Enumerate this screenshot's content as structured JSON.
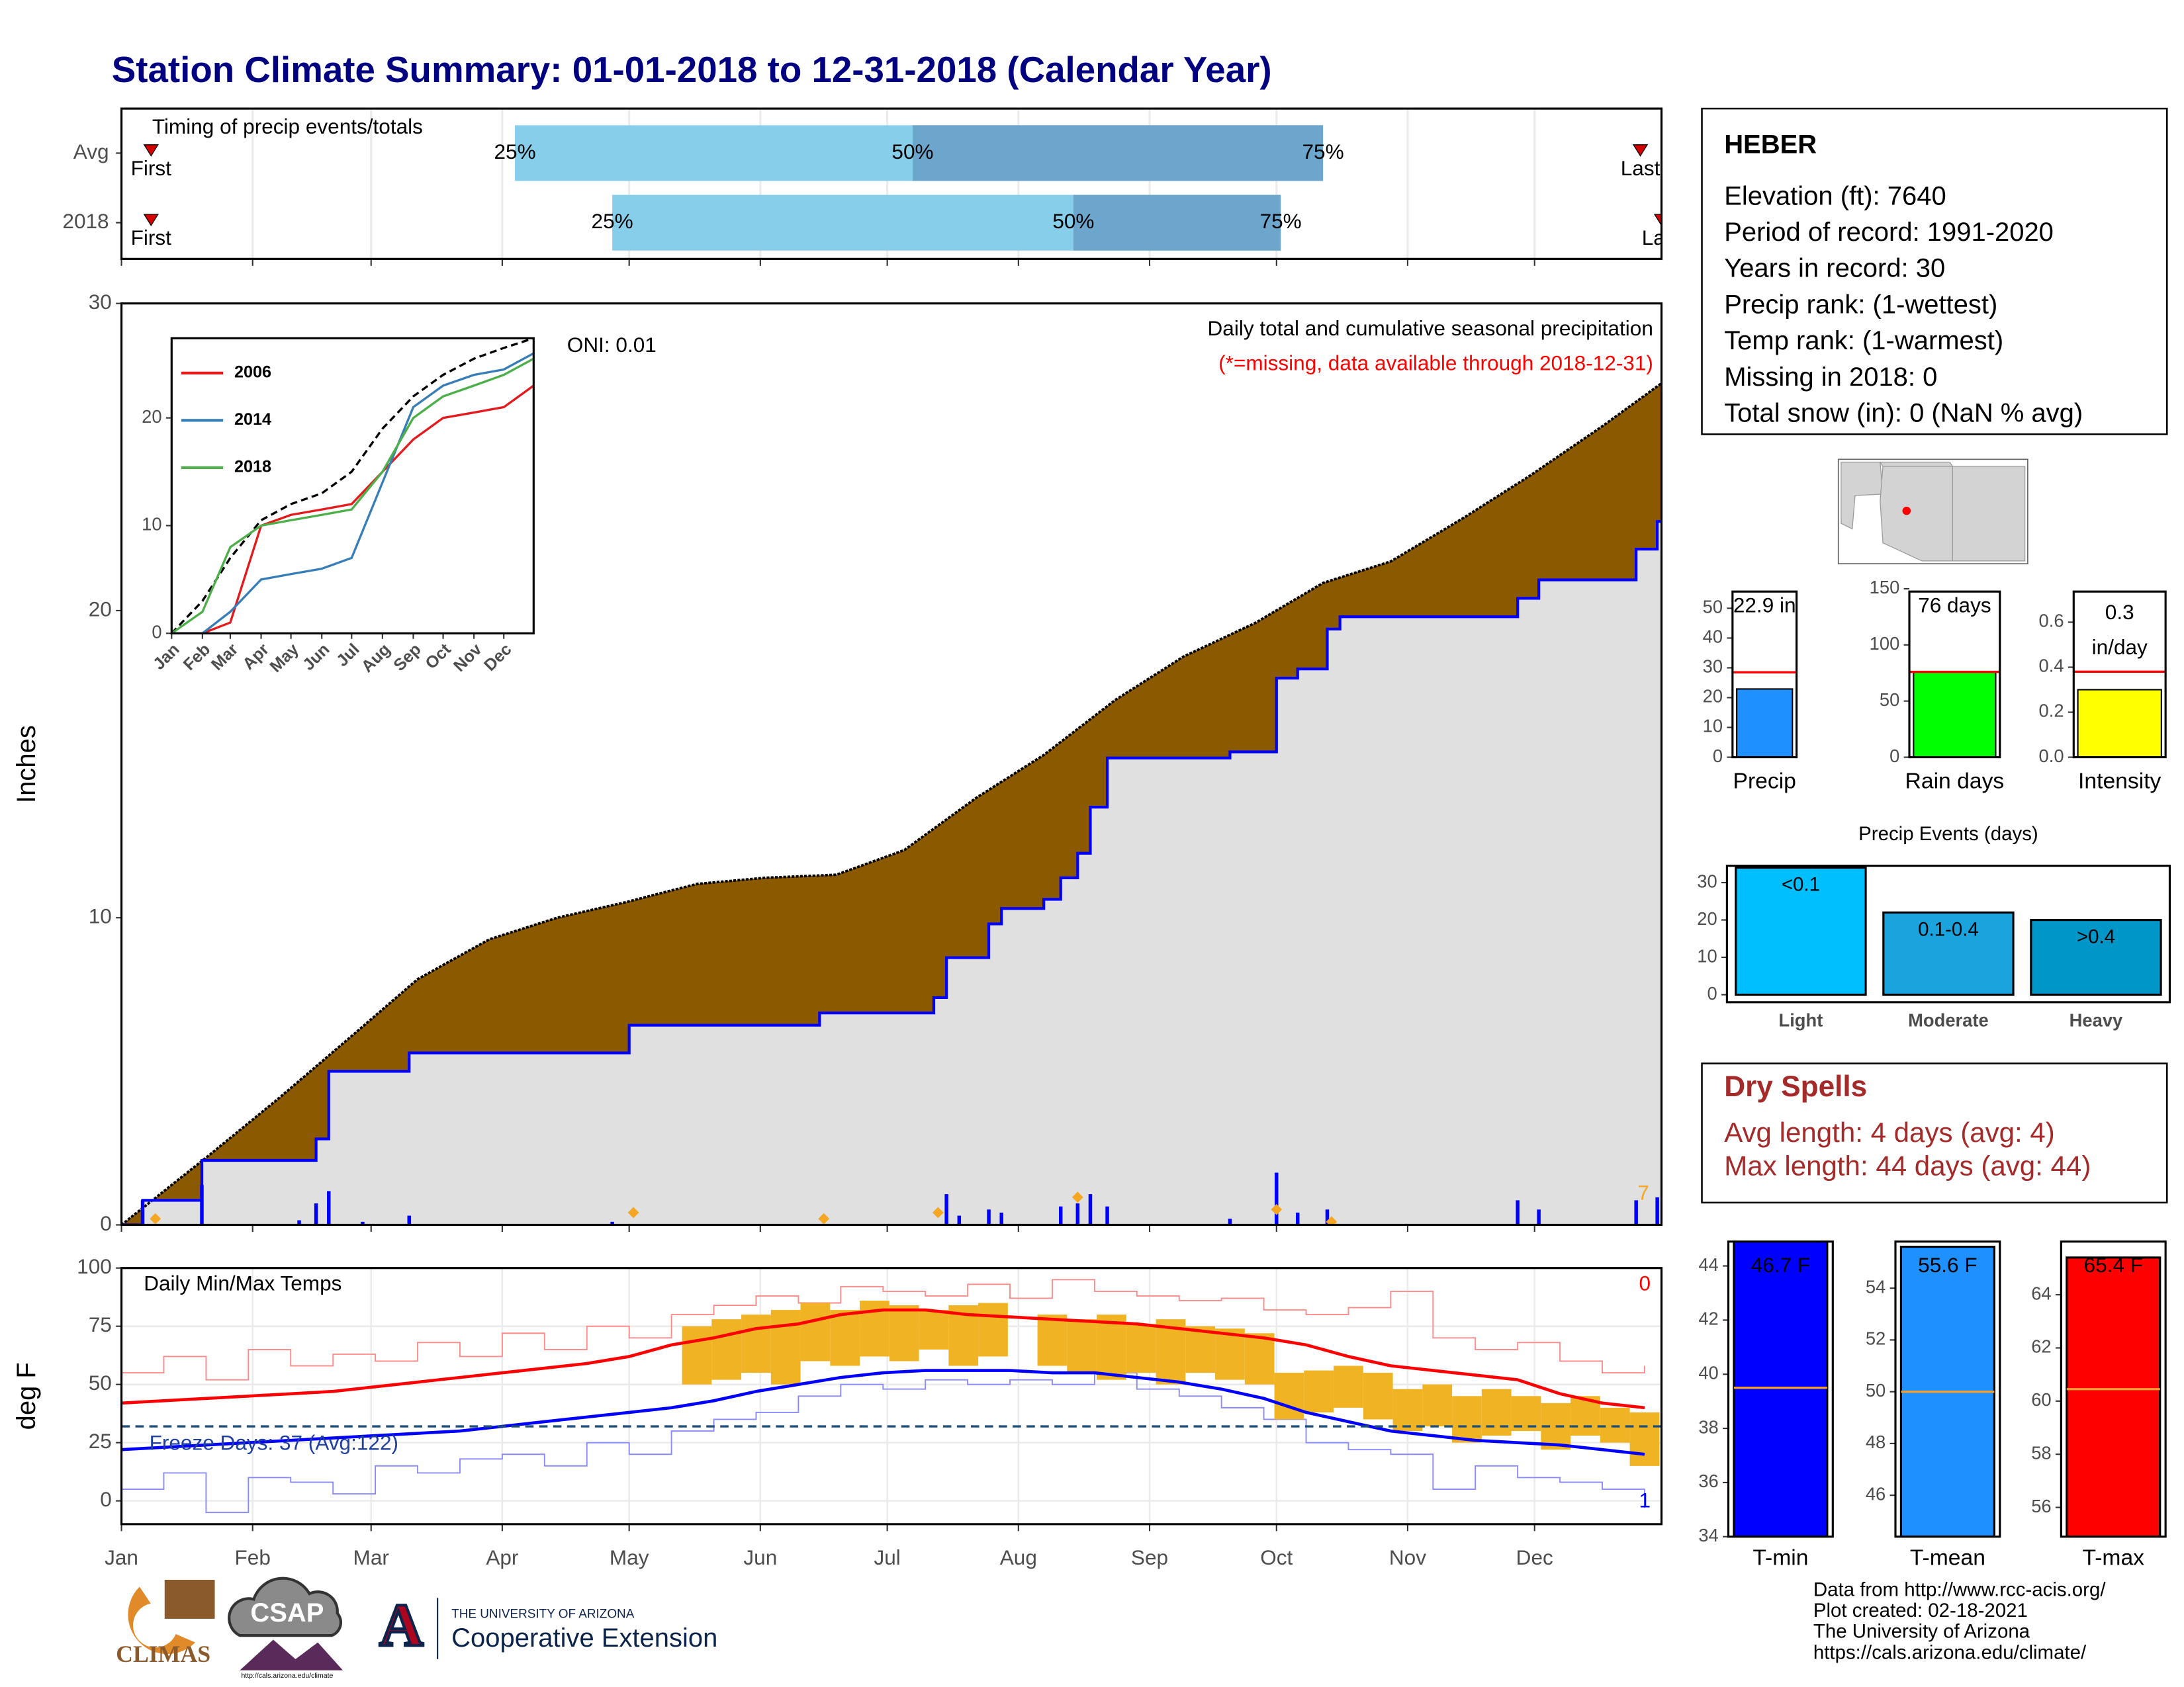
{
  "title": "Station Climate Summary: 01-01-2018 to 12-31-2018 (Calendar Year)",
  "chart_data": [
    {
      "type": "timing",
      "label": "Timing of precip events/totals",
      "xlim": [
        0,
        364
      ],
      "xticks": [
        0,
        31,
        59,
        90,
        120,
        151,
        181,
        212,
        243,
        273,
        304,
        334
      ],
      "colors": {
        "early": "#87ceeb",
        "late": "#6ca6cd",
        "marker": "#d40000"
      },
      "marker_labels": {
        "first": "First",
        "last": "Last",
        "q25": "25%",
        "q50": "50%",
        "q75": "75%"
      },
      "rows": [
        {
          "name": "Avg",
          "first": 7,
          "q25": 93,
          "q50": 187,
          "q75": 284,
          "last": 359
        },
        {
          "name": "2018",
          "first": 7,
          "q25": 116,
          "q50": 225,
          "q75": 274,
          "last": 364
        }
      ]
    },
    {
      "type": "precip",
      "title": "Daily total and cumulative seasonal precipitation",
      "note": "(*=missing, data available through 2018-12-31)",
      "oni": "ONI: 0.01",
      "ylabel": "Inches",
      "count": 7,
      "xlim": [
        0,
        364
      ],
      "xticks": [
        0,
        31,
        59,
        90,
        120,
        151,
        181,
        212,
        243,
        273,
        304,
        334
      ],
      "ylim": [
        0,
        30
      ],
      "yticks": [
        0,
        10,
        20,
        30
      ],
      "normal": {
        "color": "#000000",
        "fill": "#8b5a00",
        "x": [
          0,
          21,
          37,
          54,
          70,
          87,
          103,
          119,
          136,
          152,
          169,
          185,
          202,
          218,
          235,
          251,
          268,
          284,
          300,
          317,
          333,
          350,
          364
        ],
        "values": [
          0,
          2.3,
          4.1,
          6.1,
          8.0,
          9.3,
          10.0,
          10.5,
          11.1,
          11.3,
          11.4,
          12.2,
          13.9,
          15.3,
          17.1,
          18.5,
          19.6,
          20.9,
          21.6,
          23.0,
          24.4,
          26.0,
          27.4
        ]
      },
      "observed": {
        "color": "#0000ff",
        "fill": "#e0e0e0",
        "x": [
          0,
          5,
          19,
          46,
          49,
          68,
          120,
          165,
          192,
          195,
          205,
          208,
          218,
          222,
          226,
          229,
          233,
          262,
          273,
          278,
          285,
          288,
          330,
          335,
          358,
          363,
          364
        ],
        "values": [
          0,
          0.8,
          2.1,
          2.8,
          5.0,
          5.6,
          6.5,
          6.9,
          7.4,
          8.7,
          9.8,
          10.3,
          10.6,
          11.3,
          12.1,
          13.6,
          15.2,
          15.4,
          17.8,
          18.1,
          19.4,
          19.8,
          20.4,
          21.0,
          22.0,
          22.9,
          22.9
        ]
      },
      "daily": {
        "color": "#0000ff",
        "x": [
          5,
          19,
          42,
          46,
          49,
          57,
          68,
          116,
          195,
          198,
          205,
          208,
          222,
          226,
          229,
          233,
          262,
          273,
          278,
          285,
          330,
          335,
          358,
          363
        ],
        "values": [
          0.8,
          1.3,
          0.15,
          0.7,
          1.1,
          0.1,
          0.3,
          0.1,
          1.0,
          0.3,
          0.5,
          0.4,
          0.6,
          0.7,
          1.0,
          0.6,
          0.2,
          1.7,
          0.4,
          0.5,
          0.8,
          0.5,
          0.8,
          0.9
        ]
      },
      "markers": {
        "color": "#f5a623",
        "x": [
          8,
          121,
          166,
          193,
          226,
          273,
          286
        ],
        "values": [
          0.2,
          0.4,
          0.2,
          0.4,
          0.9,
          0.5,
          0.1
        ]
      }
    },
    {
      "type": "line",
      "xlim": [
        0,
        364
      ],
      "ylim": [
        0,
        27.4
      ],
      "yticks": [
        0,
        10,
        20
      ],
      "xticks": [
        {
          "value": 0,
          "label": "Jan"
        },
        {
          "value": 31,
          "label": "Feb"
        },
        {
          "value": 59,
          "label": "Mar"
        },
        {
          "value": 90,
          "label": "Apr"
        },
        {
          "value": 120,
          "label": "May"
        },
        {
          "value": 151,
          "label": "Jun"
        },
        {
          "value": 181,
          "label": "Jul"
        },
        {
          "value": 212,
          "label": "Aug"
        },
        {
          "value": 243,
          "label": "Sep"
        },
        {
          "value": 273,
          "label": "Oct"
        },
        {
          "value": 304,
          "label": "Nov"
        },
        {
          "value": 334,
          "label": "Dec"
        }
      ],
      "x": [
        0,
        31,
        59,
        90,
        120,
        151,
        181,
        212,
        243,
        273,
        304,
        334,
        364
      ],
      "series": [
        {
          "color": "#000000",
          "dashed": true,
          "values": [
            0,
            3,
            7,
            10.5,
            12,
            13,
            15,
            19,
            22,
            24,
            25.5,
            26.5,
            27.4
          ]
        },
        {
          "name": "2006",
          "color": "#e41a1c",
          "values": [
            0,
            0,
            1,
            10,
            11,
            11.5,
            12,
            15,
            18,
            20,
            20.5,
            21,
            23
          ]
        },
        {
          "name": "2014",
          "color": "#377eb8",
          "values": [
            0,
            0,
            2,
            5,
            5.5,
            6,
            7,
            14,
            21,
            23,
            24,
            24.5,
            26
          ]
        },
        {
          "name": "2018",
          "color": "#4daf4a",
          "values": [
            0,
            2,
            8,
            10,
            10.5,
            11,
            11.5,
            15,
            20,
            22,
            23,
            24,
            25.5
          ]
        }
      ]
    },
    {
      "type": "temps",
      "title": "Daily Min/Max Temps",
      "ylabel": "deg F",
      "freeze_label": "Freeze Days: 37 (Avg:122)",
      "hot_count": 0,
      "cold_count": 1,
      "freeze_line": 32,
      "freeze_color": "#1f4e79",
      "xlim": [
        0,
        364
      ],
      "ylim": [
        -10,
        100
      ],
      "yticks": [
        0,
        25,
        50,
        75,
        100
      ],
      "xticks": [
        {
          "value": 0,
          "label": "Jan"
        },
        {
          "value": 31,
          "label": "Feb"
        },
        {
          "value": 59,
          "label": "Mar"
        },
        {
          "value": 90,
          "label": "Apr"
        },
        {
          "value": 120,
          "label": "May"
        },
        {
          "value": 151,
          "label": "Jun"
        },
        {
          "value": 181,
          "label": "Jul"
        },
        {
          "value": 212,
          "label": "Aug"
        },
        {
          "value": 243,
          "label": "Sep"
        },
        {
          "value": 273,
          "label": "Oct"
        },
        {
          "value": 304,
          "label": "Nov"
        },
        {
          "value": 334,
          "label": "Dec"
        }
      ],
      "x": [
        0,
        10,
        20,
        30,
        40,
        50,
        60,
        70,
        80,
        90,
        100,
        110,
        120,
        130,
        140,
        150,
        160,
        170,
        180,
        190,
        200,
        210,
        220,
        230,
        240,
        250,
        260,
        270,
        280,
        290,
        300,
        310,
        320,
        330,
        340,
        350,
        360
      ],
      "thin_lines": [
        {
          "color": "#ff8a8a",
          "values": [
            55,
            62,
            52,
            65,
            58,
            63,
            60,
            68,
            62,
            72,
            65,
            75,
            70,
            80,
            84,
            88,
            85,
            92,
            90,
            88,
            93,
            87,
            95,
            90,
            88,
            86,
            87,
            82,
            80,
            83,
            90,
            70,
            65,
            68,
            60,
            55,
            58
          ]
        },
        {
          "color": "#8a8aff",
          "values": [
            5,
            12,
            -5,
            10,
            8,
            3,
            15,
            12,
            18,
            20,
            15,
            25,
            20,
            30,
            35,
            38,
            45,
            50,
            48,
            52,
            50,
            52,
            50,
            55,
            48,
            45,
            40,
            35,
            25,
            22,
            20,
            5,
            15,
            10,
            8,
            5,
            -3
          ]
        }
      ],
      "bars": {
        "color": "#f0b323",
        "x": [
          136,
          143,
          150,
          157,
          164,
          171,
          178,
          185,
          192,
          199,
          206,
          220,
          227,
          234,
          241,
          248,
          255,
          262,
          269,
          276,
          283,
          290,
          297,
          304,
          311,
          318,
          325,
          332,
          339,
          346,
          353,
          360
        ],
        "low": [
          50,
          52,
          55,
          50,
          60,
          58,
          62,
          60,
          65,
          58,
          62,
          58,
          55,
          52,
          55,
          50,
          55,
          52,
          50,
          35,
          38,
          40,
          35,
          30,
          32,
          25,
          28,
          30,
          22,
          28,
          25,
          15
        ],
        "high": [
          75,
          78,
          80,
          82,
          85,
          82,
          86,
          84,
          82,
          84,
          85,
          80,
          78,
          80,
          76,
          78,
          75,
          74,
          72,
          55,
          56,
          58,
          55,
          48,
          50,
          45,
          48,
          45,
          42,
          45,
          40,
          38
        ]
      },
      "thick_lines": [
        {
          "color": "#ff0000",
          "values": [
            42,
            43,
            44,
            45,
            46,
            47,
            49,
            51,
            53,
            55,
            57,
            59,
            62,
            67,
            70,
            74,
            76,
            80,
            82,
            82,
            80,
            79,
            78,
            77,
            76,
            74,
            72,
            70,
            67,
            62,
            58,
            56,
            54,
            52,
            46,
            42,
            40
          ]
        },
        {
          "color": "#0000ff",
          "values": [
            22,
            23,
            24,
            25,
            26,
            27,
            28,
            29,
            30,
            32,
            34,
            36,
            38,
            40,
            43,
            47,
            50,
            53,
            55,
            56,
            56,
            56,
            55,
            55,
            53,
            51,
            48,
            44,
            38,
            34,
            30,
            28,
            26,
            25,
            24,
            22,
            20
          ]
        }
      ]
    },
    {
      "type": "summary_bar",
      "category": "Precip",
      "value": 22.9,
      "value_label": "22.9 in",
      "average": 28.5,
      "ylim": [
        0,
        55.6
      ],
      "yticks": [
        0,
        10,
        20,
        30,
        40,
        50
      ],
      "color": "#1e90ff",
      "average_color": "#ff0000"
    },
    {
      "type": "summary_bar",
      "category": "Rain days",
      "value": 76,
      "value_label": "76 days",
      "average": 76,
      "ylim": [
        0,
        147.5
      ],
      "yticks": [
        0,
        50,
        100,
        150
      ],
      "color": "#00ff00",
      "average_color": "#ff0000"
    },
    {
      "type": "summary_bar",
      "category": "Intensity",
      "value": 0.3,
      "value_label": "0.3",
      "unit_label": "in/day",
      "average": 0.38,
      "ylim": [
        0,
        0.736
      ],
      "yticks": [
        0.0,
        0.2,
        0.4,
        0.6
      ],
      "ytick_labels": [
        "0.0",
        "0.2",
        "0.4",
        "0.6"
      ],
      "color": "#ffff00",
      "average_color": "#ff0000"
    },
    {
      "type": "bar",
      "title": "Precip Events (days)",
      "categories": [
        "Light",
        "Moderate",
        "Heavy"
      ],
      "values": [
        34,
        22,
        20
      ],
      "value_labels": [
        "<0.1",
        "0.1-0.4",
        ">0.4"
      ],
      "colors": [
        "#00bfff",
        "#1aa3dd",
        "#0096c7"
      ],
      "ylim": [
        -2,
        34.5
      ],
      "yticks": [
        0,
        10,
        20,
        30
      ]
    },
    {
      "type": "temp_bar",
      "category": "T-min",
      "value": 46.7,
      "value_label": "46.7 F",
      "average": 39.5,
      "ylim": [
        34,
        44.9
      ],
      "yticks": [
        34,
        36,
        38,
        40,
        42,
        44
      ],
      "color": "#0000ff",
      "average_color": "#f0a030"
    },
    {
      "type": "temp_bar",
      "category": "T-mean",
      "value": 55.6,
      "value_label": "55.6 F",
      "average": 50.0,
      "ylim": [
        44.4,
        55.8
      ],
      "yticks": [
        46,
        48,
        50,
        52,
        54
      ],
      "color": "#1e90ff",
      "average_color": "#f0a030"
    },
    {
      "type": "temp_bar",
      "category": "T-max",
      "value": 65.4,
      "value_label": "65.4 F",
      "average": 60.45,
      "ylim": [
        54.9,
        66
      ],
      "yticks": [
        56,
        58,
        60,
        62,
        64
      ],
      "color": "#ff0000",
      "average_color": "#f0a030"
    }
  ],
  "station": {
    "name": "HEBER",
    "lines": [
      "Elevation (ft): 7640",
      "Period of record: 1991-2020",
      "Years in record: 30",
      "Precip rank:  (1-wettest)",
      "Temp rank:  (1-warmest)",
      "Missing in 2018: 0",
      "Total snow (in): 0 (NaN % avg)"
    ]
  },
  "dry_spells": {
    "title": "Dry Spells",
    "lines": [
      "Avg length: 4 days (avg: 4)",
      "Max length: 44 days (avg: 44)"
    ]
  },
  "footer": [
    "Data from http://www.rcc-acis.org/",
    "Plot created: 02-18-2021",
    "The University of Arizona",
    "https://cals.arizona.edu/climate/"
  ],
  "logos": {
    "climas": "CLIMAS",
    "csap": "CSAP",
    "csap_url": "http://cals.arizona.edu/climate",
    "university": "THE UNIVERSITY OF ARIZONA",
    "extension": "Cooperative Extension"
  }
}
